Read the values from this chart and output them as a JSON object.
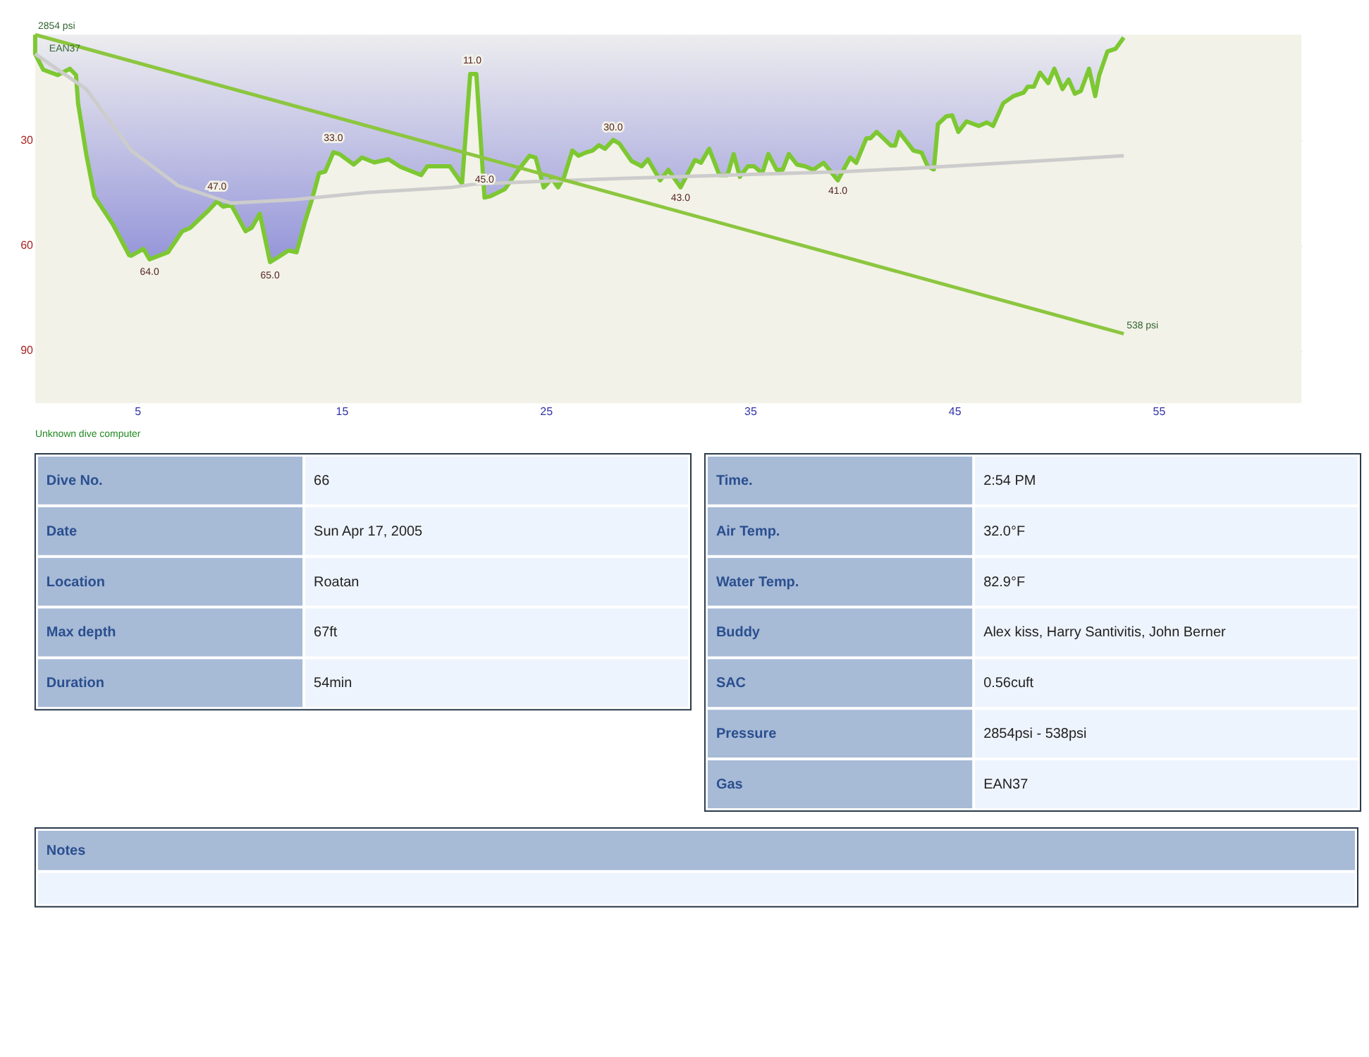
{
  "chart_data": [
    {
      "type": "area",
      "xlim": [
        0,
        62
      ],
      "ylim": [
        105,
        0
      ],
      "xticks": [
        5,
        15,
        25,
        35,
        45,
        55
      ],
      "yticks": [
        30,
        60,
        90
      ],
      "grid": true,
      "series": [
        {
          "type": "area",
          "color": "#7dc832",
          "x": [
            0,
            0,
            0.4,
            1.1,
            1.7,
            2.0,
            2.1,
            2.5,
            2.9,
            3.8,
            4.6,
            4.7,
            5.3,
            5.6,
            6.5,
            7.2,
            7.6,
            8.5,
            8.9,
            9.2,
            9.6,
            10.3,
            10.6,
            11.0,
            11.5,
            12.0,
            12.4,
            12.8,
            13.2,
            13.6,
            13.9,
            14.2,
            14.6,
            14.9,
            15.6,
            16.0,
            16.6,
            17.3,
            17.9,
            18.9,
            19.2,
            20.3,
            20.9,
            21.3,
            21.6,
            22.0,
            22.3,
            23.0,
            23.6,
            24.2,
            24.5,
            24.9,
            25.3,
            25.6,
            25.9,
            26.3,
            26.6,
            27.0,
            27.3,
            27.6,
            27.9,
            28.3,
            28.6,
            29.2,
            29.7,
            30.0,
            30.6,
            31.0,
            31.6,
            32.3,
            32.6,
            33.0,
            33.5,
            33.9,
            34.2,
            34.5,
            34.9,
            35.2,
            35.6,
            35.9,
            36.3,
            36.6,
            36.9,
            37.3,
            37.7,
            38.1,
            38.6,
            39.3,
            39.9,
            40.2,
            40.7,
            40.9,
            41.2,
            41.9,
            42.1,
            42.3,
            43.0,
            43.4,
            43.7,
            44.0,
            44.2,
            44.6,
            44.9,
            45.2,
            45.6,
            46.2,
            46.6,
            46.9,
            47.4,
            47.9,
            48.4,
            48.6,
            48.9,
            49.2,
            49.6,
            49.9,
            50.3,
            50.6,
            50.9,
            51.2,
            51.6,
            51.9,
            52.1,
            52.5,
            52.9,
            53.3
          ],
          "values": [
            0,
            5.5,
            10,
            11.5,
            9.7,
            11.5,
            19.5,
            34,
            46,
            54,
            62.8,
            63,
            61,
            64,
            62,
            56,
            55,
            50,
            47.5,
            49,
            48.5,
            56,
            55,
            51,
            64.8,
            63,
            61.5,
            62,
            53.5,
            46,
            39.5,
            39,
            33.5,
            34,
            37,
            35,
            36.4,
            35.5,
            37.7,
            40,
            37.5,
            37.5,
            42.5,
            11.2,
            11.2,
            46.4,
            46,
            44,
            39,
            34.5,
            35,
            43.5,
            41,
            43.5,
            40.5,
            33,
            34.5,
            33.5,
            33,
            31.5,
            32.5,
            30,
            31,
            36,
            37.5,
            35.5,
            41.5,
            38.5,
            43.5,
            35.7,
            36.5,
            32.5,
            40,
            40,
            34,
            40.5,
            37.5,
            37.5,
            39.5,
            34,
            38.5,
            38.5,
            34,
            37,
            37.5,
            38.5,
            36.5,
            41.5,
            35,
            36.5,
            29.5,
            29.5,
            27.7,
            31.6,
            31.6,
            27.7,
            33,
            33.6,
            37.5,
            38.4,
            25.5,
            23.3,
            23,
            27.7,
            24.7,
            26,
            25,
            26,
            19.5,
            17.5,
            16.5,
            14.8,
            14.8,
            10.8,
            13.8,
            9.7,
            15.5,
            12.8,
            16.8,
            16,
            9.7,
            17.5,
            11.5,
            4.8,
            4,
            0.8
          ]
        },
        {
          "type": "line",
          "color": "#cccccc",
          "x": [
            0,
            2.5,
            4.7,
            7.0,
            9.6,
            12.7,
            16.2,
            20.4,
            21.6,
            28.4,
            39.7,
            44.4,
            53.3
          ],
          "values": [
            5.5,
            15.5,
            33,
            43,
            48,
            47,
            45,
            43.5,
            42.5,
            41,
            39,
            37.6,
            34.5
          ]
        },
        {
          "type": "line",
          "name": "EAN37",
          "axis": "y2",
          "color": "#8cc63f",
          "x": [
            0,
            53.3
          ],
          "values": [
            2854,
            538
          ],
          "value_labels": [
            "2854 psi",
            "538 psi"
          ]
        }
      ],
      "annotations": [
        {
          "text": "64.0",
          "x": 5.6,
          "y": 64
        },
        {
          "text": "47.0",
          "x": 8.9,
          "y": 47
        },
        {
          "text": "65.0",
          "x": 11.5,
          "y": 65
        },
        {
          "text": "33.0",
          "x": 14.6,
          "y": 33
        },
        {
          "text": "11.0",
          "x": 21.4,
          "y": 11
        },
        {
          "text": "45.0",
          "x": 22.0,
          "y": 45
        },
        {
          "text": "30.0",
          "x": 28.3,
          "y": 30
        },
        {
          "text": "43.0",
          "x": 31.6,
          "y": 43
        },
        {
          "text": "41.0",
          "x": 39.3,
          "y": 41
        },
        "Unknown dive computer"
      ]
    },
    {
      "type": "other",
      "annotations": [
        "Dive No.",
        "66",
        "Date",
        "Sun Apr 17, 2005",
        "Location",
        "Roatan",
        "Max depth",
        "67ft",
        "Duration",
        "54min"
      ]
    },
    {
      "type": "other",
      "annotations": [
        "Time.",
        "2:54 PM",
        "Air Temp.",
        "32.0°F",
        "Water Temp.",
        "82.9°F",
        "Buddy",
        "Alex kiss, Harry Santivitis, John Berner",
        "SAC",
        "0.56cuft",
        "Pressure",
        "2854psi - 538psi",
        "Gas",
        "EAN37"
      ]
    },
    {
      "type": "other",
      "annotations": [
        "Notes"
      ]
    }
  ]
}
